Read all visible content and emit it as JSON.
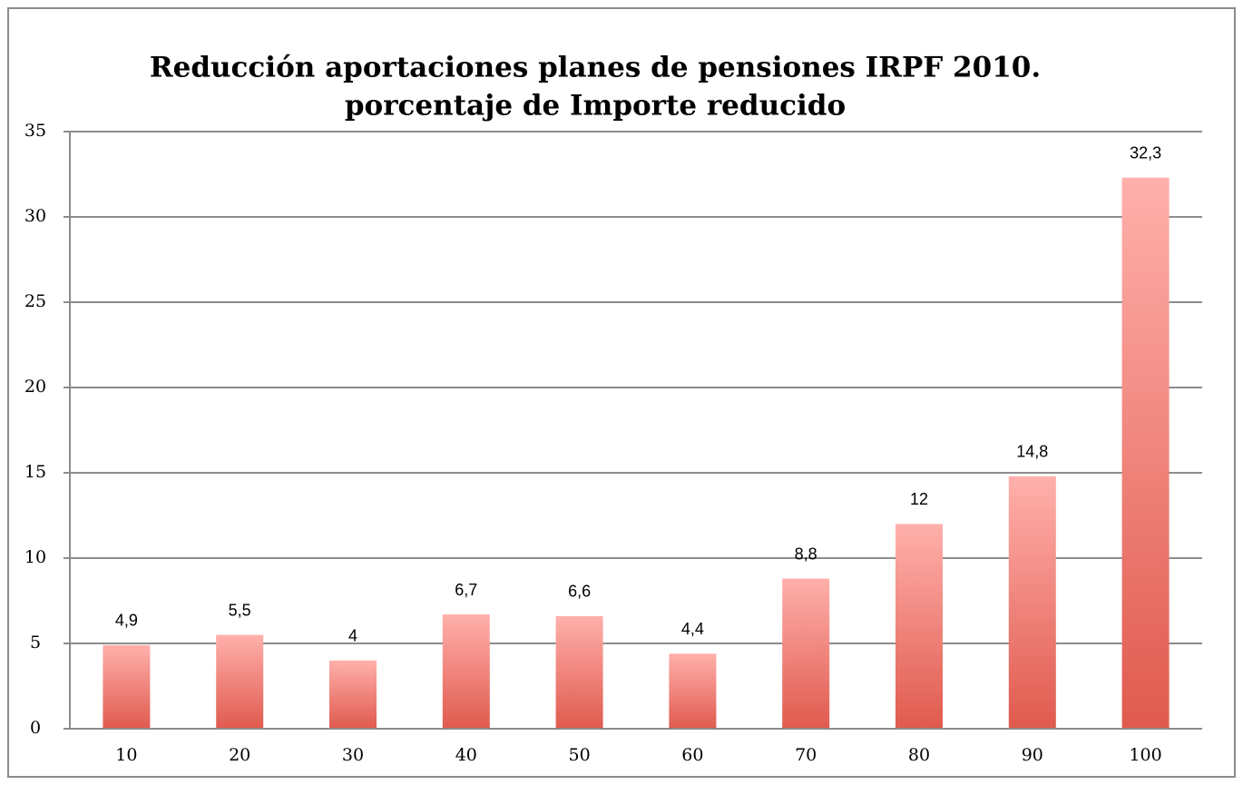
{
  "chart_data": {
    "type": "bar",
    "title": "Reducción aportaciones planes de pensiones IRPF 2010.",
    "subtitle": "porcentaje de Importe reducido",
    "categories": [
      "10",
      "20",
      "30",
      "40",
      "50",
      "60",
      "70",
      "80",
      "90",
      "100"
    ],
    "values": [
      4.9,
      5.5,
      4,
      6.7,
      6.6,
      4.4,
      8.8,
      12,
      14.8,
      32.3
    ],
    "value_labels": [
      "4,9",
      "5,5",
      "4",
      "6,7",
      "6,6",
      "4,4",
      "8,8",
      "12",
      "14,8",
      "32,3"
    ],
    "color": "#e05a4e",
    "ylim": [
      0,
      35
    ],
    "yticks": [
      0,
      5,
      10,
      15,
      20,
      25,
      30,
      35
    ],
    "grid": true
  }
}
